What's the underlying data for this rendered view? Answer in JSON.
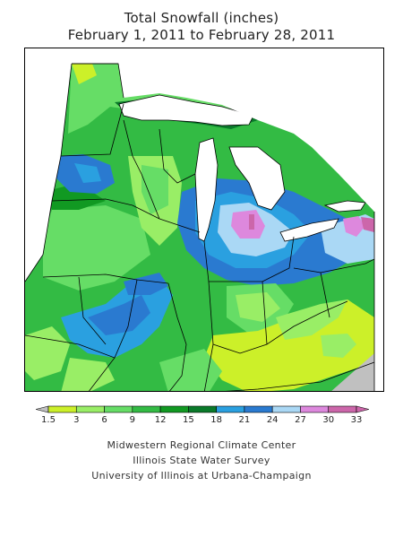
{
  "title": {
    "line1": "Total Snowfall (inches)",
    "line2": "February 1, 2011 to February 28, 2011"
  },
  "legend": {
    "values": [
      "1.5",
      "3",
      "6",
      "9",
      "12",
      "15",
      "18",
      "21",
      "24",
      "27",
      "30",
      "33"
    ],
    "colors": [
      "#c0c0c0",
      "#ccf029",
      "#99ee66",
      "#66dd66",
      "#33bb44",
      "#119922",
      "#0a7a2a",
      "#2aa0e0",
      "#2a7ad0",
      "#aad8f5",
      "#dd88dd",
      "#cc66aa"
    ]
  },
  "credits": {
    "line1": "Midwestern Regional Climate Center",
    "line2": "Illinois State Water Survey",
    "line3": "University of Illinois at Urbana-Champaign"
  }
}
